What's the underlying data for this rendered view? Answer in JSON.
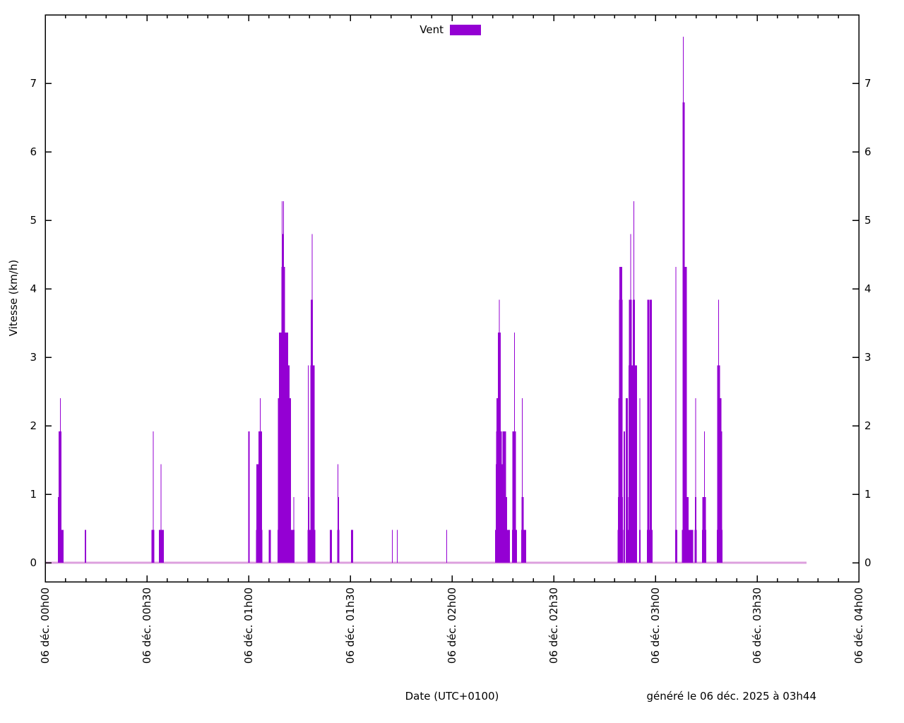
{
  "chart_data": {
    "type": "bar",
    "title": "",
    "ylabel": "Vitesse (km/h)",
    "xlabel": "Date (UTC+0100)",
    "footer_note": "généré le 06 déc. 2025 à 03h44",
    "legend": [
      {
        "name": "Vent",
        "color": "#9400d3"
      }
    ],
    "y_unit": "km/h",
    "ylim": [
      0,
      8
    ],
    "y_ticks": [
      0,
      1,
      2,
      3,
      4,
      5,
      6,
      7
    ],
    "x_major_ticks": [
      {
        "minute": 0,
        "label": "06 déc. 00h00"
      },
      {
        "minute": 30,
        "label": "06 déc. 00h30"
      },
      {
        "minute": 60,
        "label": "06 déc. 01h00"
      },
      {
        "minute": 90,
        "label": "06 déc. 01h30"
      },
      {
        "minute": 120,
        "label": "06 déc. 02h00"
      },
      {
        "minute": 150,
        "label": "06 déc. 02h30"
      },
      {
        "minute": 180,
        "label": "06 déc. 03h00"
      },
      {
        "minute": 210,
        "label": "06 déc. 03h30"
      },
      {
        "minute": 240,
        "label": "06 déc. 04h00"
      }
    ],
    "x_minor_tick_minutes": 6,
    "x_range_minutes": [
      0,
      240
    ],
    "data_end_minute": 224.6,
    "grid": false,
    "legend_position": "top-center",
    "colors": {
      "bar": "#9400d3",
      "zero_line": "#dda0de",
      "axis": "#000000",
      "text": "#000000",
      "background": "#ffffff"
    },
    "bars_format": [
      "start_minute",
      "value_kmh",
      "width_minutes"
    ],
    "bars": [
      [
        3.7,
        0.48,
        1.6
      ],
      [
        3.8,
        0.96,
        0.5
      ],
      [
        4.0,
        1.92,
        0.8
      ],
      [
        4.4,
        2.4,
        0.18
      ],
      [
        11.7,
        0.48,
        0.4
      ],
      [
        31.4,
        0.48,
        0.9
      ],
      [
        31.8,
        1.92,
        0.18
      ],
      [
        33.5,
        0.48,
        1.4
      ],
      [
        34.1,
        1.44,
        0.18
      ],
      [
        59.9,
        1.92,
        0.4
      ],
      [
        62.2,
        0.48,
        1.8
      ],
      [
        62.3,
        1.44,
        0.6
      ],
      [
        62.9,
        1.92,
        0.95
      ],
      [
        63.3,
        2.4,
        0.18
      ],
      [
        65.9,
        0.48,
        0.65
      ],
      [
        68.5,
        0.48,
        5.1
      ],
      [
        68.6,
        2.4,
        0.75
      ],
      [
        69.0,
        3.36,
        2.75
      ],
      [
        69.7,
        4.32,
        0.95
      ],
      [
        69.9,
        4.8,
        0.5
      ],
      [
        69.8,
        5.28,
        0.15
      ],
      [
        70.2,
        5.28,
        0.15
      ],
      [
        71.5,
        2.88,
        0.65
      ],
      [
        72.1,
        2.4,
        0.45
      ],
      [
        73.2,
        0.96,
        0.3
      ],
      [
        77.4,
        0.48,
        2.2
      ],
      [
        77.5,
        0.96,
        0.45
      ],
      [
        77.5,
        2.88,
        0.15
      ],
      [
        78.2,
        2.88,
        1.2
      ],
      [
        78.3,
        3.84,
        0.7
      ],
      [
        78.65,
        4.8,
        0.15
      ],
      [
        84.0,
        0.48,
        0.55
      ],
      [
        86.1,
        0.48,
        0.6
      ],
      [
        86.2,
        0.96,
        0.45
      ],
      [
        86.3,
        1.44,
        0.15
      ],
      [
        90.2,
        0.48,
        0.7
      ],
      [
        102.3,
        0.48,
        0.15
      ],
      [
        103.7,
        0.48,
        0.15
      ],
      [
        118.3,
        0.48,
        0.15
      ],
      [
        132.7,
        0.48,
        4.3
      ],
      [
        132.9,
        1.44,
        2.3
      ],
      [
        133.0,
        1.92,
        1.7
      ],
      [
        133.1,
        2.4,
        1.25
      ],
      [
        133.5,
        3.36,
        0.9
      ],
      [
        133.9,
        3.84,
        0.15
      ],
      [
        134.9,
        1.92,
        1.0
      ],
      [
        135.8,
        0.96,
        0.5
      ],
      [
        137.7,
        0.48,
        1.45
      ],
      [
        137.85,
        1.92,
        0.95
      ],
      [
        138.3,
        3.36,
        0.15
      ],
      [
        140.4,
        0.48,
        1.4
      ],
      [
        140.5,
        0.96,
        0.6
      ],
      [
        140.65,
        2.4,
        0.15
      ],
      [
        168.9,
        0.48,
        1.6
      ],
      [
        169.0,
        0.96,
        1.4
      ],
      [
        169.1,
        2.4,
        1.1
      ],
      [
        169.3,
        3.84,
        1.0
      ],
      [
        169.4,
        4.32,
        0.8
      ],
      [
        170.6,
        1.92,
        0.5
      ],
      [
        171.2,
        2.4,
        0.7
      ],
      [
        171.9,
        0.48,
        2.8
      ],
      [
        172.0,
        0.96,
        2.6
      ],
      [
        172.05,
        2.88,
        2.45
      ],
      [
        172.2,
        3.84,
        0.85
      ],
      [
        173.3,
        3.84,
        0.7
      ],
      [
        172.6,
        4.8,
        0.15
      ],
      [
        173.5,
        5.28,
        0.15
      ],
      [
        174.2,
        1.92,
        0.35
      ],
      [
        175.2,
        0.48,
        0.45
      ],
      [
        175.3,
        2.4,
        0.15
      ],
      [
        177.5,
        0.48,
        1.6
      ],
      [
        177.6,
        3.84,
        0.65
      ],
      [
        178.3,
        3.84,
        0.55
      ],
      [
        185.8,
        0.48,
        0.6
      ],
      [
        185.9,
        2.88,
        0.3
      ],
      [
        185.95,
        4.32,
        0.15
      ],
      [
        187.8,
        0.48,
        3.4
      ],
      [
        188.3,
        0.96,
        1.5
      ],
      [
        188.0,
        6.72,
        0.55
      ],
      [
        188.1,
        7.68,
        0.15
      ],
      [
        188.4,
        4.32,
        0.75
      ],
      [
        191.6,
        0.48,
        0.7
      ],
      [
        191.7,
        0.96,
        0.45
      ],
      [
        191.8,
        2.4,
        0.15
      ],
      [
        193.8,
        0.48,
        1.35
      ],
      [
        193.9,
        0.96,
        1.05
      ],
      [
        194.4,
        1.92,
        0.15
      ],
      [
        198.1,
        0.48,
        1.7
      ],
      [
        198.2,
        2.88,
        0.85
      ],
      [
        198.55,
        3.84,
        0.15
      ],
      [
        198.9,
        2.4,
        0.55
      ],
      [
        199.3,
        1.92,
        0.5
      ]
    ]
  }
}
